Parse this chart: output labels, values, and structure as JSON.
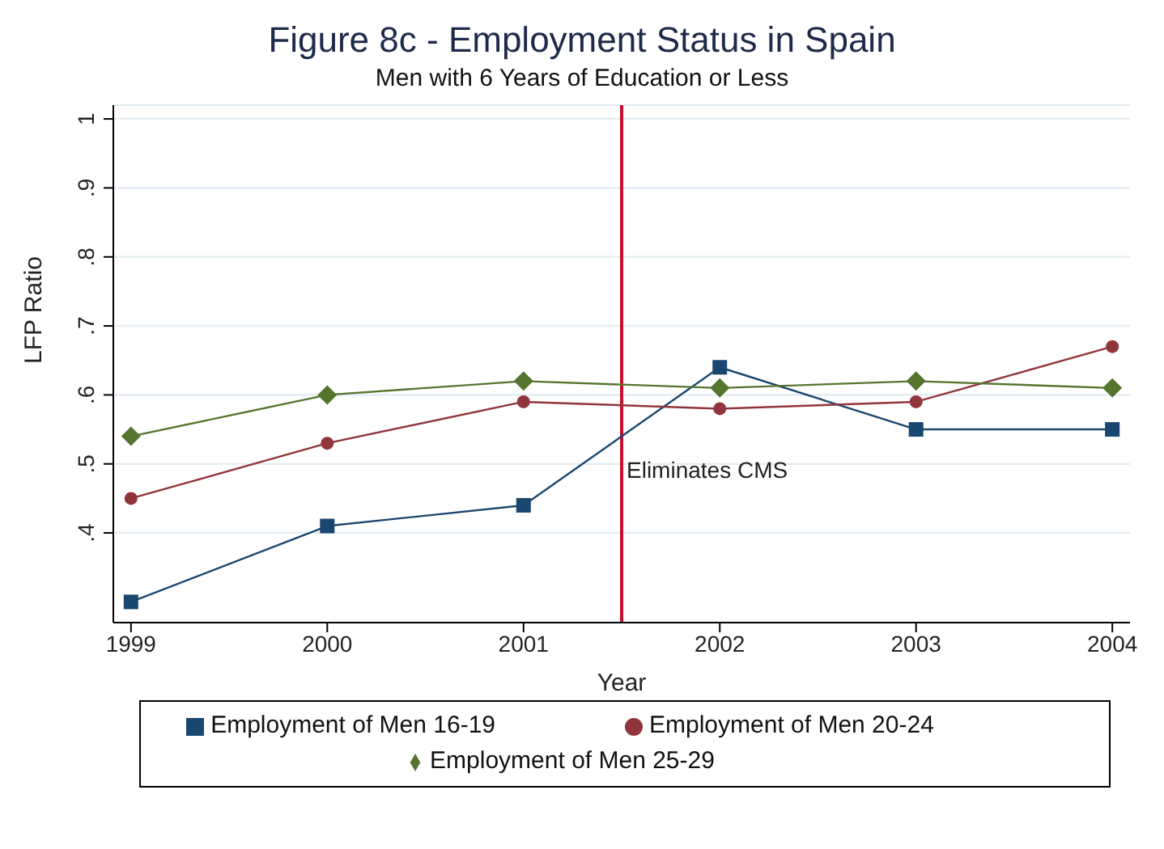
{
  "chart_data": {
    "type": "line",
    "title": "Figure 8c - Employment Status in Spain",
    "subtitle": "Men with 6 Years of Education or Less",
    "xlabel": "Year",
    "ylabel": "LFP Ratio",
    "x": [
      1999,
      2000,
      2001,
      2002,
      2003,
      2004
    ],
    "series": [
      {
        "name": "Employment of Men 16-19",
        "color": "#1a476f",
        "marker": "square",
        "values": [
          0.3,
          0.41,
          0.44,
          0.64,
          0.55,
          0.55
        ]
      },
      {
        "name": "Employment of Men 20-24",
        "color": "#90353b",
        "marker": "circle",
        "values": [
          0.45,
          0.53,
          0.59,
          0.58,
          0.59,
          0.67
        ]
      },
      {
        "name": "Employment of Men 25-29",
        "color": "#55752f",
        "marker": "diamond",
        "values": [
          0.54,
          0.6,
          0.62,
          0.61,
          0.62,
          0.61
        ]
      }
    ],
    "xlim": [
      1998.91,
      2004.09
    ],
    "xticks": [
      1999,
      2000,
      2001,
      2002,
      2003,
      2004
    ],
    "ylim": [
      0.27,
      1.02
    ],
    "yticks": [
      {
        "value": 0.4,
        "label": ".4"
      },
      {
        "value": 0.5,
        "label": ".5"
      },
      {
        "value": 0.6,
        "label": ".6"
      },
      {
        "value": 0.7,
        "label": ".7"
      },
      {
        "value": 0.8,
        "label": ".8"
      },
      {
        "value": 0.9,
        "label": ".9"
      },
      {
        "value": 1,
        "label": "1"
      }
    ],
    "ref_lines": [
      {
        "axis": "x",
        "value": 2001.5,
        "label": "Eliminates CMS",
        "color": "#c8102e"
      }
    ],
    "grid": "y",
    "legend": "bottom",
    "line_style": "solid"
  }
}
